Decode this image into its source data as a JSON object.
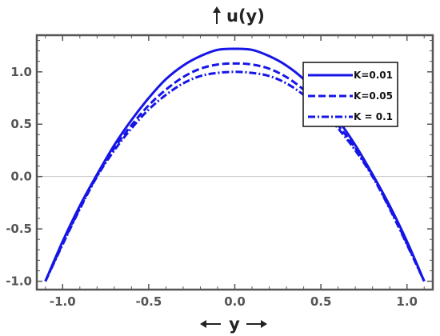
{
  "chart_data": {
    "type": "line",
    "title": "",
    "ylabel": "u(y)",
    "xlabel": "y",
    "xlim": [
      -1.15,
      1.15
    ],
    "ylim": [
      -1.08,
      1.35
    ],
    "x_ticks": [
      -1.0,
      -0.5,
      0.0,
      0.5,
      1.0
    ],
    "x_tick_labels": [
      "-1.0",
      "-0.5",
      "0.0",
      "0.5",
      "1.0"
    ],
    "y_ticks": [
      -1.0,
      -0.5,
      0.0,
      0.5,
      1.0
    ],
    "y_tick_labels": [
      "-1.0",
      "-0.5",
      "0.0",
      "0.5",
      "1.0"
    ],
    "grid": false,
    "zero_line": true,
    "legend_position": "top-right",
    "series_color": "#1515e6",
    "series": [
      {
        "name": "K=0.01",
        "dash": "solid",
        "x": [
          -1.1,
          -1.0,
          -0.9,
          -0.8,
          -0.7,
          -0.6,
          -0.5,
          -0.4,
          -0.3,
          -0.2,
          -0.1,
          0.0,
          0.1,
          0.2,
          0.3,
          0.4,
          0.5,
          0.6,
          0.7,
          0.8,
          0.9,
          1.0,
          1.1
        ],
        "y": [
          -1.0,
          -0.62,
          -0.28,
          0.02,
          0.3,
          0.54,
          0.75,
          0.93,
          1.06,
          1.15,
          1.21,
          1.22,
          1.21,
          1.15,
          1.06,
          0.93,
          0.75,
          0.54,
          0.3,
          0.02,
          -0.28,
          -0.62,
          -1.0
        ]
      },
      {
        "name": "K=0.05",
        "dash": "dashed",
        "x": [
          -1.1,
          -1.0,
          -0.9,
          -0.8,
          -0.7,
          -0.6,
          -0.5,
          -0.4,
          -0.3,
          -0.2,
          -0.1,
          0.0,
          0.1,
          0.2,
          0.3,
          0.4,
          0.5,
          0.6,
          0.7,
          0.8,
          0.9,
          1.0,
          1.1
        ],
        "y": [
          -1.0,
          -0.64,
          -0.3,
          0.01,
          0.27,
          0.49,
          0.68,
          0.83,
          0.95,
          1.03,
          1.07,
          1.08,
          1.07,
          1.03,
          0.95,
          0.83,
          0.68,
          0.49,
          0.27,
          0.01,
          -0.3,
          -0.64,
          -1.0
        ]
      },
      {
        "name": "K = 0.1",
        "dash": "dashdot",
        "x": [
          -1.1,
          -1.0,
          -0.9,
          -0.8,
          -0.7,
          -0.6,
          -0.5,
          -0.4,
          -0.3,
          -0.2,
          -0.1,
          0.0,
          0.1,
          0.2,
          0.3,
          0.4,
          0.5,
          0.6,
          0.7,
          0.8,
          0.9,
          1.0,
          1.1
        ],
        "y": [
          -1.0,
          -0.65,
          -0.31,
          0.0,
          0.25,
          0.46,
          0.64,
          0.78,
          0.89,
          0.96,
          0.99,
          1.0,
          0.99,
          0.96,
          0.89,
          0.78,
          0.64,
          0.46,
          0.25,
          0.0,
          -0.31,
          -0.65,
          -1.0
        ]
      }
    ]
  }
}
